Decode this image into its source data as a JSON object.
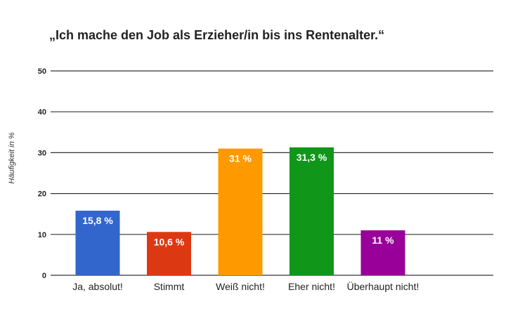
{
  "chart_data": {
    "type": "bar",
    "title": "„Ich mache den Job als Erzieher/in bis ins Rentenalter.“",
    "xlabel": "",
    "ylabel": "Häufigkeit in %",
    "ylim": [
      0,
      50
    ],
    "yticks": [
      "0",
      "10",
      "20",
      "30",
      "40",
      "50"
    ],
    "grid": true,
    "categories": [
      "Ja, absolut!",
      "Stimmt",
      "Weiß nicht!",
      "Eher nicht!",
      "Überhaupt nicht!"
    ],
    "values": [
      15.8,
      10.6,
      31,
      31.3,
      11
    ],
    "data_labels": [
      "15,8 %",
      "10,6 %",
      "31 %",
      "31,3 %",
      "11 %"
    ],
    "colors": [
      "#3366cc",
      "#dc3912",
      "#ff9900",
      "#109618",
      "#990099"
    ]
  }
}
